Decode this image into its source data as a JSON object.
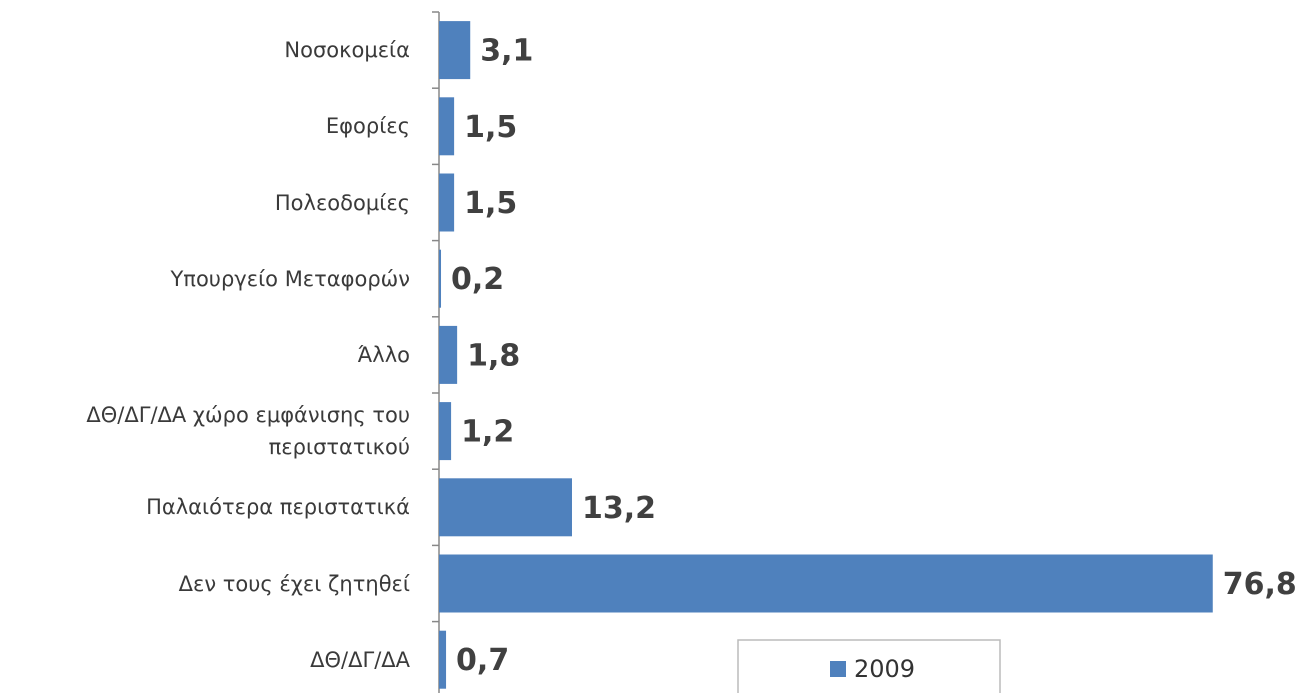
{
  "chart_data": {
    "type": "bar",
    "orientation": "horizontal",
    "categories": [
      "Νοσοκομεία",
      "Εφορίες",
      "Πολεοδομίες",
      "Υπουργείο Μεταφορών",
      "Άλλο",
      "ΔΘ/ΔΓ/ΔΑ χώρο εμφάνισης του περιστατικού",
      "Παλαιότερα περιστατικά",
      "Δεν τους έχει ζητηθεί",
      "ΔΘ/ΔΓ/ΔΑ"
    ],
    "series": [
      {
        "name": "2009",
        "color": "#4f81bd",
        "values": [
          3.1,
          1.5,
          1.5,
          0.2,
          1.8,
          1.2,
          13.2,
          76.8,
          0.7
        ],
        "value_labels": [
          "3,1",
          "1,5",
          "1,5",
          "0,2",
          "1,8",
          "1,2",
          "13,2",
          "76,8",
          "0,7"
        ]
      }
    ],
    "xlim": [
      0,
      80
    ]
  }
}
